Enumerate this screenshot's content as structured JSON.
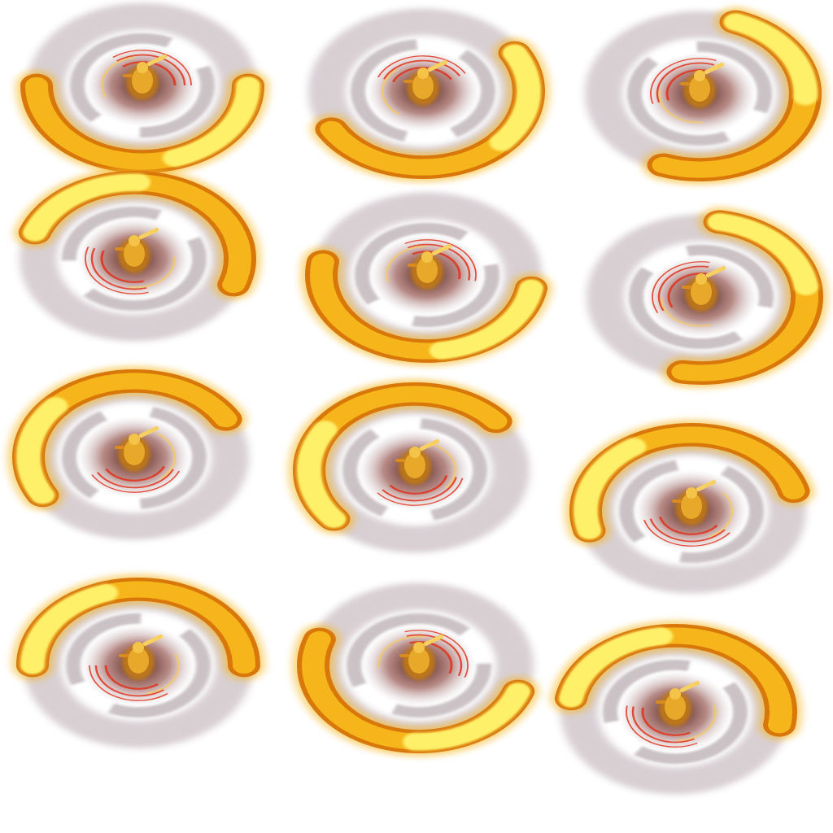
{
  "sprite_sheet": {
    "columns": 3,
    "rows": 4,
    "frame_count": 12,
    "palette": {
      "background": "#ffffff",
      "flame_outer": "#d9780a",
      "flame_mid": "#f6b51a",
      "flame_core": "#fff06a",
      "smoke": "#b9a8b0",
      "vortex_dark": "#3c1212",
      "streak_red": "#e0311c",
      "figure": "#c27a12"
    },
    "frames": [
      {
        "index": 1,
        "rotation_deg": 180
      },
      {
        "index": 2,
        "rotation_deg": 150
      },
      {
        "index": 3,
        "rotation_deg": 110
      },
      {
        "index": 4,
        "rotation_deg": 20
      },
      {
        "index": 5,
        "rotation_deg": 190
      },
      {
        "index": 6,
        "rotation_deg": 100
      },
      {
        "index": 7,
        "rotation_deg": 330
      },
      {
        "index": 8,
        "rotation_deg": 320
      },
      {
        "index": 9,
        "rotation_deg": 345
      },
      {
        "index": 10,
        "rotation_deg": 0
      },
      {
        "index": 11,
        "rotation_deg": 200
      },
      {
        "index": 12,
        "rotation_deg": 10
      }
    ]
  }
}
